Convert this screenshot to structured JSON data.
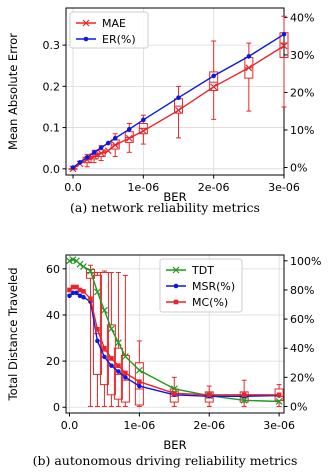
{
  "chart_data": [
    {
      "type": "line",
      "caption": "(a) network reliability metrics",
      "xlabel": "BER",
      "ylabel": "Mean Absolute Error",
      "x_ticks": [
        "0.0",
        "1e-06",
        "2e-06",
        "3e-06"
      ],
      "xlim": [
        -1e-07,
        3e-06
      ],
      "ylim": [
        -0.015,
        0.39
      ],
      "y_ticks": [
        "0.0",
        "0.1",
        "0.2",
        "0.3"
      ],
      "y2_ticks": [
        "0%",
        "10%",
        "20%",
        "30%",
        "40%"
      ],
      "y2lim": [
        -2.0,
        42.5
      ],
      "legend_position": "upper-left",
      "grid": true,
      "series": [
        {
          "name": "MAE",
          "color": "#e8262a",
          "marker": "x",
          "axis": "left",
          "x": [
            0,
            1e-07,
            2e-07,
            3e-07,
            4e-07,
            5e-07,
            6e-07,
            8e-07,
            1e-06,
            1.5e-06,
            2e-06,
            2.5e-06,
            3e-06
          ],
          "values": [
            0.0,
            0.012,
            0.022,
            0.03,
            0.038,
            0.044,
            0.058,
            0.074,
            0.092,
            0.142,
            0.199,
            0.245,
            0.298
          ],
          "box": [
            {
              "x": 0,
              "q1": 0.0,
              "q3": 0.0,
              "median": 0.0,
              "lo": 0.0,
              "hi": 0.0
            },
            {
              "x": 2e-07,
              "q1": 0.015,
              "q3": 0.028,
              "median": 0.022,
              "lo": 0.005,
              "hi": 0.035
            },
            {
              "x": 3e-07,
              "q1": 0.024,
              "q3": 0.036,
              "median": 0.03,
              "lo": 0.015,
              "hi": 0.045
            },
            {
              "x": 4e-07,
              "q1": 0.03,
              "q3": 0.046,
              "median": 0.038,
              "lo": 0.02,
              "hi": 0.056
            },
            {
              "x": 6e-07,
              "q1": 0.048,
              "q3": 0.07,
              "median": 0.058,
              "lo": 0.03,
              "hi": 0.085
            },
            {
              "x": 8e-07,
              "q1": 0.064,
              "q3": 0.09,
              "median": 0.076,
              "lo": 0.04,
              "hi": 0.11
            },
            {
              "x": 1e-06,
              "q1": 0.085,
              "q3": 0.11,
              "median": 0.098,
              "lo": 0.06,
              "hi": 0.13
            },
            {
              "x": 1.5e-06,
              "q1": 0.135,
              "q3": 0.17,
              "median": 0.152,
              "lo": 0.075,
              "hi": 0.2
            },
            {
              "x": 2e-06,
              "q1": 0.19,
              "q3": 0.235,
              "median": 0.21,
              "lo": 0.12,
              "hi": 0.31
            },
            {
              "x": 2.5e-06,
              "q1": 0.22,
              "q3": 0.27,
              "median": 0.245,
              "lo": 0.14,
              "hi": 0.305
            },
            {
              "x": 3e-06,
              "q1": 0.27,
              "q3": 0.33,
              "median": 0.305,
              "lo": 0.15,
              "hi": 0.37
            }
          ]
        },
        {
          "name": "ER(%)",
          "color": "#0b19e0",
          "marker": "o",
          "axis": "right",
          "x": [
            0,
            1e-07,
            2e-07,
            3e-07,
            4e-07,
            5e-07,
            6e-07,
            8e-07,
            1e-06,
            1.5e-06,
            2e-06,
            2.5e-06,
            3e-06
          ],
          "values": [
            0.0,
            1.4,
            2.7,
            4.0,
            5.3,
            6.5,
            7.8,
            10.2,
            12.7,
            18.6,
            24.4,
            29.6,
            35.5
          ]
        }
      ]
    },
    {
      "type": "line",
      "caption": "(b) autonomous driving reliability metrics",
      "xlabel": "BER",
      "ylabel": "Total Distance Traveled",
      "x_ticks": [
        "0.0",
        "1e-06",
        "2e-06",
        "3e-06"
      ],
      "xlim": [
        -5e-08,
        3.07e-06
      ],
      "ylim": [
        -2.5,
        66
      ],
      "y_ticks": [
        "0",
        "20",
        "40",
        "60"
      ],
      "y2_ticks": [
        "0%",
        "20%",
        "40%",
        "60%",
        "80%",
        "100%"
      ],
      "y2lim": [
        -4.5,
        104
      ],
      "legend_position": "upper-right",
      "grid": true,
      "series": [
        {
          "name": "TDT",
          "color": "#219a21",
          "marker": "x",
          "axis": "left",
          "x": [
            0,
            5e-08,
            1e-07,
            1.5e-07,
            2e-07,
            3e-07,
            4e-07,
            5e-07,
            6e-07,
            7e-07,
            8e-07,
            1e-06,
            1.5e-06,
            2e-06,
            2.5e-06,
            3e-06
          ],
          "values": [
            63.5,
            64,
            63.5,
            62,
            61,
            59,
            50,
            42,
            34,
            28,
            22,
            16,
            8,
            5,
            3,
            2.5
          ]
        },
        {
          "name": "MSR(%)",
          "color": "#0b19e0",
          "marker": "o",
          "axis": "right",
          "x": [
            0,
            5e-08,
            1e-07,
            1.5e-07,
            2e-07,
            3e-07,
            4e-07,
            5e-07,
            6e-07,
            7e-07,
            8e-07,
            1e-06,
            1.5e-06,
            2e-06,
            2.5e-06,
            3e-06
          ],
          "values": [
            76,
            78,
            78,
            76,
            75,
            72,
            45,
            34,
            28,
            24,
            20,
            14,
            8,
            7,
            7,
            7.5
          ]
        },
        {
          "name": "MC(%)",
          "color": "#e8262a",
          "marker": "s",
          "axis": "right",
          "x": [
            0,
            5e-08,
            1e-07,
            1.5e-07,
            2e-07,
            3e-07,
            4e-07,
            5e-07,
            6e-07,
            7e-07,
            8e-07,
            1e-06,
            1.5e-06,
            2e-06,
            2.5e-06,
            3e-06
          ],
          "values": [
            80,
            82,
            82,
            80,
            79,
            74,
            53,
            40,
            33,
            28,
            23,
            17,
            9,
            8,
            8,
            8
          ],
          "box": [
            {
              "x": 3e-07,
              "q1": 88,
              "q3": 94,
              "median": 92,
              "lo": 0,
              "hi": 97
            },
            {
              "x": 4e-07,
              "q1": 22,
              "q3": 90,
              "median": 50,
              "lo": 0,
              "hi": 92
            },
            {
              "x": 5e-07,
              "q1": 15,
              "q3": 92,
              "median": 38,
              "lo": 0,
              "hi": 93
            },
            {
              "x": 6e-07,
              "q1": 8,
              "q3": 56,
              "median": 28,
              "lo": 0,
              "hi": 92
            },
            {
              "x": 7e-07,
              "q1": 5,
              "q3": 40,
              "median": 22,
              "lo": 0,
              "hi": 92
            },
            {
              "x": 8e-07,
              "q1": 3,
              "q3": 35,
              "median": 18,
              "lo": 0,
              "hi": 90
            },
            {
              "x": 1e-06,
              "q1": 1,
              "q3": 30,
              "median": 12,
              "lo": 0,
              "hi": 45
            },
            {
              "x": 1.5e-06,
              "q1": 3,
              "q3": 12,
              "median": 7,
              "lo": 0,
              "hi": 20
            },
            {
              "x": 2e-06,
              "q1": 3,
              "q3": 10,
              "median": 6,
              "lo": 0,
              "hi": 14
            },
            {
              "x": 2.5e-06,
              "q1": 3,
              "q3": 10,
              "median": 6,
              "lo": 0,
              "hi": 18
            },
            {
              "x": 3e-06,
              "q1": 4,
              "q3": 12,
              "median": 7,
              "lo": 0,
              "hi": 15
            }
          ]
        }
      ]
    }
  ]
}
